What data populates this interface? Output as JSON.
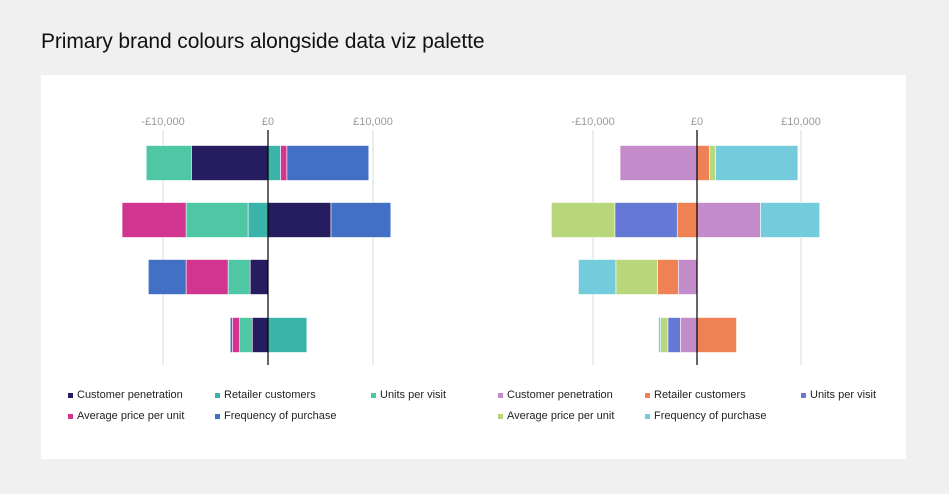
{
  "page": {
    "title": "Primary brand colours alongside data viz palette"
  },
  "chart_data": [
    {
      "type": "bar",
      "orientation": "horizontal",
      "stacked": "diverging",
      "xlim": [
        -15000,
        15000
      ],
      "ticks": [
        {
          "value": -10000,
          "label": "-£10,000"
        },
        {
          "value": 0,
          "label": "£0"
        },
        {
          "value": 10000,
          "label": "£10,000"
        }
      ],
      "grid": true,
      "legend_position": "bottom",
      "categories": [
        "",
        "",
        "",
        ""
      ],
      "series": [
        {
          "name": "Customer penetration",
          "color": "#261d61",
          "values": [
            -7300,
            6000,
            -1700,
            -1500
          ]
        },
        {
          "name": "Retailer customers",
          "color": "#3ab3a9",
          "values": [
            1200,
            -1900,
            0,
            3700
          ]
        },
        {
          "name": "Units per visit",
          "color": "#4fc7a5",
          "values": [
            -4300,
            -5900,
            -2100,
            -1200
          ]
        },
        {
          "name": "Average price per unit",
          "color": "#d13590",
          "values": [
            600,
            -6100,
            -4000,
            -700
          ]
        },
        {
          "name": "Frequency of purchase",
          "color": "#4170c4",
          "values": [
            7800,
            5700,
            -3600,
            -200
          ]
        }
      ]
    },
    {
      "type": "bar",
      "orientation": "horizontal",
      "stacked": "diverging",
      "xlim": [
        -15000,
        15000
      ],
      "ticks": [
        {
          "value": -10000,
          "label": "-£10,000"
        },
        {
          "value": 0,
          "label": "£0"
        },
        {
          "value": 10000,
          "label": "£10,000"
        }
      ],
      "grid": true,
      "legend_position": "bottom",
      "categories": [
        "",
        "",
        "",
        ""
      ],
      "series": [
        {
          "name": "Customer penetration",
          "color": "#c48bcb",
          "values": [
            -7400,
            6100,
            -1800,
            -1600
          ]
        },
        {
          "name": "Retailer customers",
          "color": "#ee8254",
          "values": [
            1200,
            -1900,
            -2000,
            3800
          ]
        },
        {
          "name": "Units per visit",
          "color": "#6678d6",
          "values": [
            0,
            -6000,
            0,
            -1200
          ]
        },
        {
          "name": "Average price per unit",
          "color": "#b8d67a",
          "values": [
            600,
            -6100,
            -4000,
            -700
          ]
        },
        {
          "name": "Frequency of purchase",
          "color": "#73cbdb",
          "values": [
            7900,
            5700,
            -3600,
            -200
          ]
        }
      ]
    }
  ]
}
